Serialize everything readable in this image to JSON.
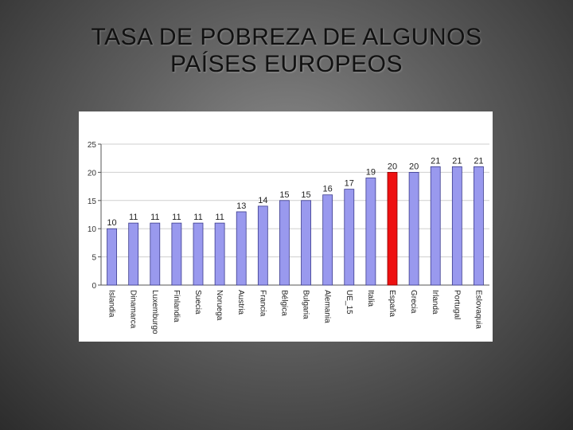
{
  "slide": {
    "title_line1": "TASA DE POBREZA DE ALGUNOS",
    "title_line2": "PAÍSES EUROPEOS"
  },
  "chart_data": {
    "type": "bar",
    "title": "",
    "xlabel": "",
    "ylabel": "",
    "ylim": [
      0,
      25
    ],
    "yticks": [
      0,
      5,
      10,
      15,
      20,
      25
    ],
    "grid": true,
    "categories": [
      "Islandia",
      "Dinamarca",
      "Luxemburgo",
      "Finlandia",
      "Suecia",
      "Noruega",
      "Austria",
      "Francia",
      "Bélgica",
      "Bulgaria",
      "Alemania",
      "UE_15",
      "Italia",
      "España",
      "Grecia",
      "Irlanda",
      "Portugal",
      "Eslovaquia"
    ],
    "values": [
      10,
      11,
      11,
      11,
      11,
      11,
      13,
      14,
      15,
      15,
      16,
      17,
      19,
      20,
      20,
      21,
      21,
      21
    ],
    "highlight_category": "España",
    "colors": {
      "bar": "#9999ee",
      "bar_stroke": "#3a3a8c",
      "highlight": "#ee1111",
      "highlight_stroke": "#880000",
      "grid": "#cfcfcf",
      "axis": "#555555"
    }
  }
}
